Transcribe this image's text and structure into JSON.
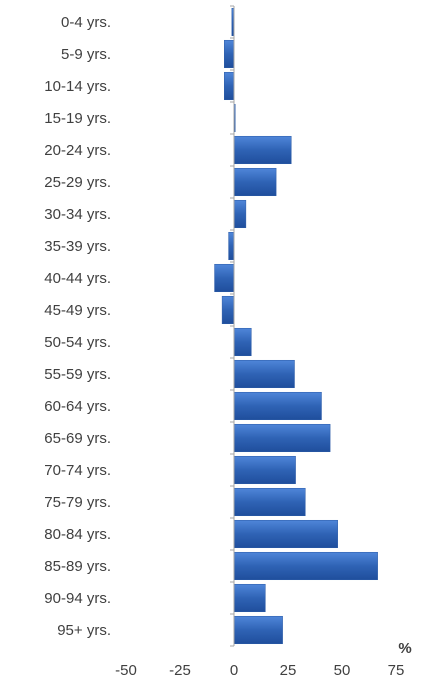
{
  "chart_data": {
    "type": "bar",
    "orientation": "horizontal",
    "title": "",
    "xlabel": "%",
    "ylabel": "",
    "xlim": [
      -50,
      75
    ],
    "x_ticks": [
      -50,
      -25,
      0,
      25,
      50,
      75
    ],
    "grid": false,
    "legend": "none",
    "bar_color": "#2f63b5",
    "categories": [
      "0-4 yrs.",
      "5-9 yrs.",
      "10-14 yrs.",
      "15-19 yrs.",
      "20-24 yrs.",
      "25-29 yrs.",
      "30-34 yrs.",
      "35-39 yrs.",
      "40-44 yrs.",
      "45-49 yrs.",
      "50-54 yrs.",
      "55-59 yrs.",
      "60-64 yrs.",
      "65-69 yrs.",
      "70-74 yrs.",
      "75-79 yrs.",
      "80-84 yrs.",
      "85-89 yrs.",
      "90-94 yrs.",
      "95+ yrs."
    ],
    "values": [
      -1,
      -4.5,
      -4.5,
      0.5,
      26.5,
      19.5,
      5.5,
      -2.5,
      -9,
      -5.5,
      8,
      28,
      40.5,
      44.5,
      28.5,
      33,
      48,
      66.5,
      14.5,
      22.5
    ]
  }
}
